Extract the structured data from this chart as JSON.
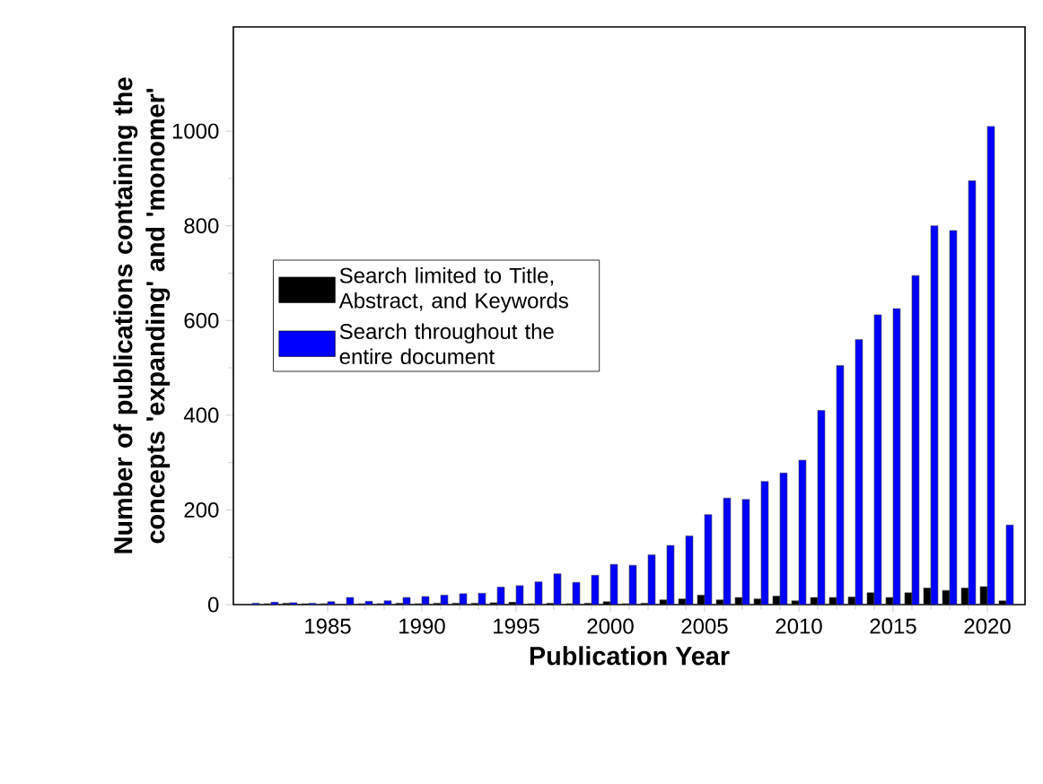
{
  "chart_data": {
    "type": "bar",
    "xlabel": "Publication Year",
    "ylabel": "Number of publications containing the concepts 'expanding' and 'monomer'",
    "x": [
      1981,
      1982,
      1983,
      1984,
      1985,
      1986,
      1987,
      1988,
      1989,
      1990,
      1991,
      1992,
      1993,
      1994,
      1995,
      1996,
      1997,
      1998,
      1999,
      2000,
      2001,
      2002,
      2003,
      2004,
      2005,
      2006,
      2007,
      2008,
      2009,
      2010,
      2011,
      2012,
      2013,
      2014,
      2015,
      2016,
      2017,
      2018,
      2019,
      2020,
      2021
    ],
    "series": [
      {
        "name": "Search limited to Title, Abstract, and Keywords",
        "color": "#000000",
        "values": [
          1,
          2,
          3,
          2,
          2,
          1,
          2,
          2,
          3,
          2,
          3,
          3,
          3,
          4,
          5,
          2,
          3,
          2,
          3,
          6,
          2,
          3,
          10,
          12,
          20,
          10,
          15,
          12,
          18,
          8,
          15,
          15,
          16,
          25,
          15,
          25,
          35,
          30,
          35,
          38,
          8
        ]
      },
      {
        "name": "Search throughout the entire document",
        "color": "#0000ff",
        "values": [
          3,
          5,
          4,
          3,
          6,
          15,
          7,
          8,
          15,
          17,
          20,
          23,
          24,
          37,
          40,
          48,
          65,
          47,
          62,
          85,
          83,
          105,
          125,
          145,
          190,
          225,
          222,
          260,
          278,
          305,
          410,
          505,
          560,
          612,
          625,
          695,
          800,
          790,
          895,
          1010,
          168
        ]
      }
    ],
    "xlim": [
      1980,
      2022
    ],
    "ylim": [
      0,
      1220
    ],
    "xticks": [
      1985,
      1990,
      1995,
      2000,
      2005,
      2010,
      2015,
      2020
    ],
    "yticks": [
      0,
      200,
      400,
      600,
      800,
      1000
    ],
    "legend": "left",
    "grid": false
  }
}
